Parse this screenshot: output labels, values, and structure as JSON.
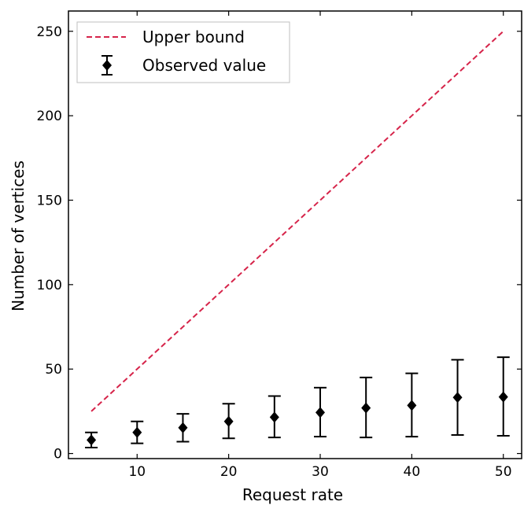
{
  "chart_data": {
    "type": "scatter",
    "xlabel": "Request rate",
    "ylabel": "Number of vertices",
    "xlim": [
      2.5,
      52
    ],
    "ylim": [
      -3,
      262
    ],
    "xticks": [
      10,
      20,
      30,
      40,
      50
    ],
    "yticks": [
      0,
      50,
      100,
      150,
      200,
      250
    ],
    "grid": false,
    "legend_position": "top-left",
    "series": [
      {
        "name": "Upper bound",
        "kind": "line",
        "style": "dashed",
        "color": "#d6244a",
        "x": [
          5,
          50
        ],
        "y": [
          25,
          250
        ]
      },
      {
        "name": "Observed value",
        "kind": "errorbar",
        "marker": "diamond",
        "color": "#000000",
        "x": [
          5,
          10,
          15,
          20,
          25,
          30,
          35,
          40,
          45,
          50
        ],
        "y": [
          8,
          12.5,
          15.3,
          19,
          21.5,
          24.3,
          27,
          28.5,
          33.2,
          33.5
        ],
        "yerr_low": [
          3.5,
          6,
          7,
          9,
          9.5,
          10,
          9.5,
          10,
          11,
          10.5
        ],
        "yerr_high": [
          12.5,
          19,
          23.5,
          29.5,
          34,
          39,
          45,
          47.5,
          55.5,
          57
        ]
      }
    ]
  }
}
